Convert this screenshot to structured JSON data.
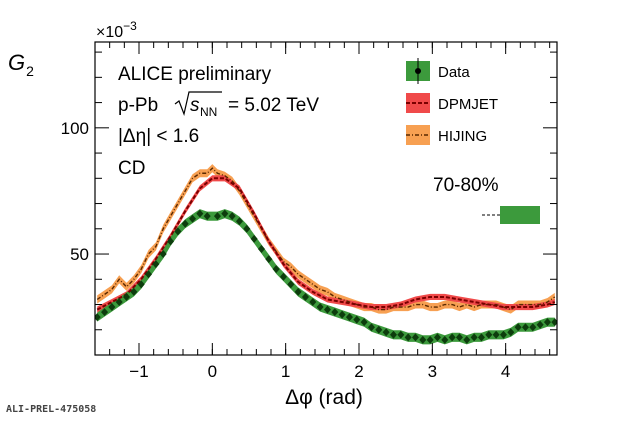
{
  "chart_data": {
    "type": "line",
    "ylabel_main": "G",
    "ylabel_sub": "2",
    "xlabel": "Δφ (rad)",
    "exponent_label": "×10",
    "exponent_power": "−3",
    "xlim": [
      -1.6,
      4.7
    ],
    "ylim": [
      10,
      134
    ],
    "xticks": [
      -1,
      0,
      1,
      2,
      3,
      4
    ],
    "xtick_labels": [
      "−1",
      "0",
      "1",
      "2",
      "3",
      "4"
    ],
    "yticks": [
      50,
      100
    ],
    "ytick_labels": [
      "50",
      "100"
    ],
    "annotations": {
      "experiment": "ALICE preliminary",
      "system": "p-Pb",
      "energy_var": "s",
      "energy_sub": "NN",
      "energy_val": "= 5.02 TeV",
      "eta_cut": "|Δη| < 1.6",
      "label": "CD",
      "centrality": "70-80%"
    },
    "legend": {
      "position": "top-right",
      "data_label": "Data",
      "dpmjet_label": "DPMJET",
      "hijing_label": "HIJING"
    },
    "colors": {
      "data_fill": "#3c9a3c",
      "data_marker": "#0d3d0d",
      "dpmjet_line": "#7a0000",
      "dpmjet_band": "#f04a4a",
      "hijing_band": "#f7a052",
      "hijing_line": "#5a2800"
    },
    "series": [
      {
        "name": "Data",
        "x": [
          -1.57,
          -1.47,
          -1.37,
          -1.27,
          -1.17,
          -1.07,
          -0.97,
          -0.87,
          -0.77,
          -0.67,
          -0.57,
          -0.47,
          -0.37,
          -0.27,
          -0.17,
          -0.07,
          0.07,
          0.17,
          0.27,
          0.37,
          0.47,
          0.57,
          0.67,
          0.77,
          0.87,
          0.97,
          1.07,
          1.17,
          1.27,
          1.37,
          1.47,
          1.57,
          1.67,
          1.77,
          1.87,
          1.97,
          2.07,
          2.17,
          2.27,
          2.37,
          2.47,
          2.57,
          2.67,
          2.77,
          2.87,
          2.97,
          3.07,
          3.17,
          3.27,
          3.37,
          3.47,
          3.57,
          3.67,
          3.77,
          3.87,
          3.97,
          4.07,
          4.17,
          4.27,
          4.37,
          4.47,
          4.57,
          4.67
        ],
        "y": [
          25,
          27,
          29,
          31,
          33,
          35,
          38,
          42,
          46,
          50,
          55,
          59,
          62,
          64,
          66,
          65,
          65,
          66,
          65,
          63,
          60,
          56,
          52,
          48,
          44,
          41,
          38,
          35,
          33,
          31,
          29,
          28,
          27,
          26,
          25,
          24,
          23,
          21,
          20,
          19,
          18,
          18,
          17,
          17,
          16,
          16,
          17,
          16,
          17,
          17,
          16,
          17,
          17,
          18,
          18,
          18,
          19,
          21,
          21,
          21,
          22,
          23,
          23
        ]
      },
      {
        "name": "DPMJET",
        "x": [
          -1.57,
          -1.37,
          -1.17,
          -0.97,
          -0.77,
          -0.57,
          -0.37,
          -0.17,
          0.0,
          0.17,
          0.37,
          0.57,
          0.77,
          0.97,
          1.17,
          1.37,
          1.57,
          1.77,
          1.97,
          2.17,
          2.37,
          2.57,
          2.77,
          2.97,
          3.17,
          3.37,
          3.57,
          3.77,
          3.97,
          4.17,
          4.37,
          4.57,
          4.67
        ],
        "y": [
          28,
          31,
          34,
          40,
          48,
          57,
          67,
          76,
          80,
          80,
          76,
          66,
          55,
          46,
          39,
          35,
          32,
          31,
          30,
          29,
          29,
          30,
          32,
          33,
          33,
          32,
          31,
          30,
          29,
          29,
          29,
          30,
          31
        ]
      },
      {
        "name": "HIJING",
        "x": [
          -1.57,
          -1.47,
          -1.37,
          -1.27,
          -1.17,
          -1.07,
          -0.97,
          -0.87,
          -0.77,
          -0.67,
          -0.57,
          -0.47,
          -0.37,
          -0.27,
          -0.17,
          -0.07,
          0.0,
          0.07,
          0.17,
          0.27,
          0.37,
          0.47,
          0.57,
          0.67,
          0.77,
          0.87,
          0.97,
          1.07,
          1.17,
          1.27,
          1.37,
          1.47,
          1.57,
          1.67,
          1.77,
          1.87,
          1.97,
          2.07,
          2.17,
          2.27,
          2.37,
          2.47,
          2.57,
          2.67,
          2.77,
          2.87,
          2.97,
          3.07,
          3.17,
          3.27,
          3.37,
          3.47,
          3.57,
          3.67,
          3.77,
          3.87,
          3.97,
          4.07,
          4.17,
          4.27,
          4.37,
          4.47,
          4.57,
          4.67
        ],
        "y": [
          32,
          34,
          36,
          40,
          37,
          40,
          44,
          50,
          53,
          60,
          65,
          70,
          75,
          80,
          82,
          82,
          84,
          82,
          81,
          79,
          75,
          70,
          65,
          60,
          55,
          51,
          47,
          45,
          42,
          40,
          38,
          36,
          35,
          33,
          32,
          31,
          30,
          29,
          29,
          28,
          28,
          29,
          29,
          29,
          30,
          30,
          29,
          29,
          30,
          30,
          29,
          30,
          29,
          30,
          30,
          30,
          29,
          28,
          30,
          30,
          30,
          30,
          31,
          33
        ]
      }
    ]
  },
  "footer": {
    "ref_id": "ALI-PREL-475058"
  }
}
